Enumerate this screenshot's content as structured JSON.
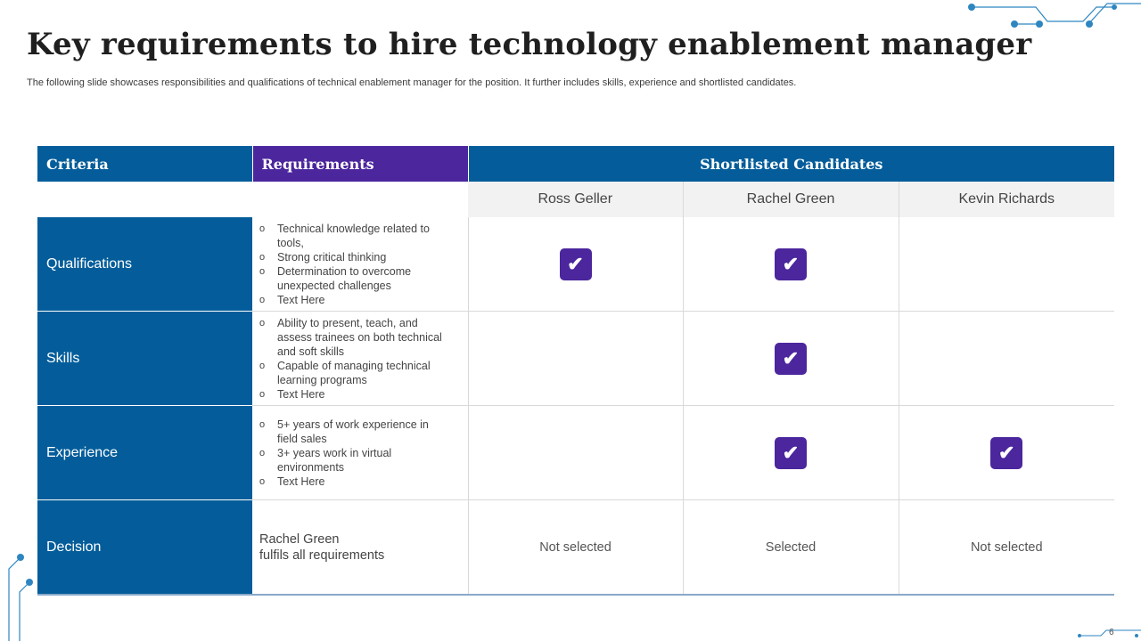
{
  "title": "Key requirements to hire technology enablement manager",
  "subtitle": "The following slide showcases responsibilities and qualifications of technical enablement manager for the position. It further includes skills, experience and shortlisted candidates.",
  "page_number": "6",
  "colors": {
    "blue": "#045d9a",
    "purple": "#4b269d",
    "accent_line": "#2e86c1"
  },
  "table": {
    "headers": {
      "criteria": "Criteria",
      "requirements": "Requirements",
      "candidates": "Shortlisted Candidates"
    },
    "candidates": [
      "Ross Geller",
      "Rachel Green",
      "Kevin Richards"
    ],
    "rows": [
      {
        "criterion": "Qualifications",
        "requirements": [
          "Technical knowledge related to tools,",
          "Strong critical thinking",
          "Determination to overcome unexpected challenges",
          "Text Here"
        ],
        "checks": [
          true,
          true,
          false
        ]
      },
      {
        "criterion": "Skills",
        "requirements": [
          "Ability to present, teach, and assess trainees on both technical and soft skills",
          "Capable of managing technical learning programs",
          "Text Here"
        ],
        "checks": [
          false,
          true,
          false
        ]
      },
      {
        "criterion": "Experience",
        "requirements": [
          "5+ years of work experience in field sales",
          "3+ years work in virtual environments",
          "Text Here"
        ],
        "checks": [
          false,
          true,
          true
        ]
      }
    ],
    "decision": {
      "criterion": "Decision",
      "line1": "Rachel Green",
      "line2": "fulfils all requirements",
      "results": [
        "Not selected",
        "Selected",
        "Not selected"
      ]
    },
    "bullet_symbol": "o",
    "check_icon": "check-icon"
  }
}
